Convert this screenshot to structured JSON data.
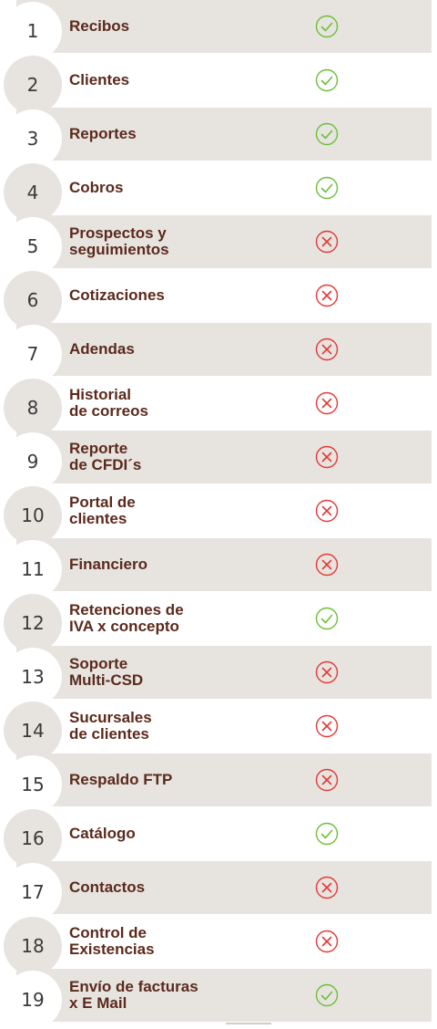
{
  "colors": {
    "band": "#e7e4e0",
    "text": "#5b2a1c",
    "check": "#6bbf3a",
    "cross": "#e53935",
    "number": "#3a3a3a"
  },
  "features": [
    {
      "number": "1",
      "label": "Recibos",
      "status": "check-icon"
    },
    {
      "number": "2",
      "label": "Clientes",
      "status": "check-icon"
    },
    {
      "number": "3",
      "label": "Reportes",
      "status": "check-icon"
    },
    {
      "number": "4",
      "label": "Cobros",
      "status": "check-icon"
    },
    {
      "number": "5",
      "label": "Prospectos y\nseguimientos",
      "status": "cross-icon"
    },
    {
      "number": "6",
      "label": "Cotizaciones",
      "status": "cross-icon"
    },
    {
      "number": "7",
      "label": "Adendas",
      "status": "cross-icon"
    },
    {
      "number": "8",
      "label": "Historial\nde correos",
      "status": "cross-icon"
    },
    {
      "number": "9",
      "label": "Reporte\nde CFDI´s",
      "status": "cross-icon"
    },
    {
      "number": "10",
      "label": "Portal de\nclientes",
      "status": "cross-icon"
    },
    {
      "number": "11",
      "label": "Financiero",
      "status": "cross-icon"
    },
    {
      "number": "12",
      "label": "Retenciones de\nIVA x concepto",
      "status": "check-icon"
    },
    {
      "number": "13",
      "label": "Soporte\nMulti-CSD",
      "status": "cross-icon"
    },
    {
      "number": "14",
      "label": "Sucursales\nde clientes",
      "status": "cross-icon"
    },
    {
      "number": "15",
      "label": "Respaldo FTP",
      "status": "cross-icon"
    },
    {
      "number": "16",
      "label": "Catálogo",
      "status": "check-icon"
    },
    {
      "number": "17",
      "label": "Contactos",
      "status": "cross-icon"
    },
    {
      "number": "18",
      "label": "Control de\nExistencias",
      "status": "cross-icon"
    },
    {
      "number": "19",
      "label": "Envío de facturas\nx E Mail",
      "status": "check-icon"
    }
  ]
}
